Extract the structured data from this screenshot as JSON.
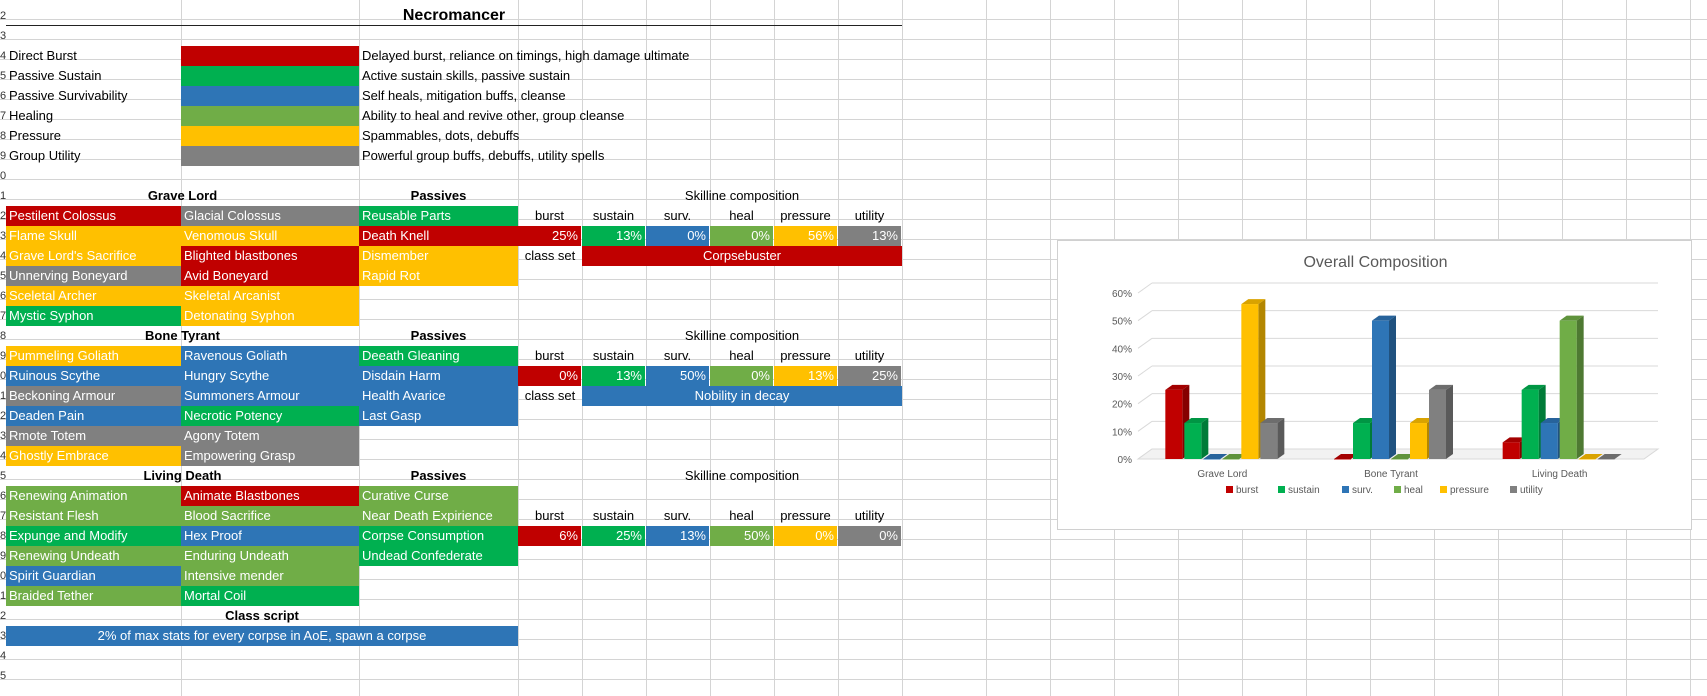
{
  "sheet_title": "Necromancer",
  "row_numbers": [
    "2",
    "3",
    "4",
    "5",
    "6",
    "7",
    "8",
    "9",
    "0",
    "1",
    "2",
    "3",
    "4",
    "5",
    "6",
    "7",
    "8",
    "9",
    "0",
    "1",
    "2",
    "3",
    "4",
    "5",
    "6",
    "7",
    "8",
    "9",
    "0",
    "1",
    "2",
    "3",
    "4",
    "5"
  ],
  "colors": {
    "red": "#c00000",
    "green": "#00b050",
    "blue": "#2e75b6",
    "lightgreen": "#70ad47",
    "orange": "#ffc000",
    "gray": "#808080"
  },
  "legend_rows": [
    {
      "name": "Direct Burst",
      "color": "red",
      "desc": "Delayed burst, reliance on timings, high damage ultimate"
    },
    {
      "name": "Passive Sustain",
      "color": "green",
      "desc": "Active sustain skills, passive sustain"
    },
    {
      "name": "Passive Survivability",
      "color": "blue",
      "desc": "Self heals, mitigation buffs, cleanse"
    },
    {
      "name": "Healing",
      "color": "lightgreen",
      "desc": "Ability to heal and revive other, group cleanse"
    },
    {
      "name": "Pressure",
      "color": "orange",
      "desc": "Spammables, dots, debuffs"
    },
    {
      "name": "Group Utility",
      "color": "gray",
      "desc": "Powerful group buffs, debuffs, utility spells"
    }
  ],
  "skill_lines": [
    {
      "name": "Grave Lord",
      "passives_label": "Passives",
      "composition_label": "Skilline composition",
      "skills": [
        [
          {
            "t": "Pestilent Colossus",
            "c": "red"
          },
          {
            "t": "Glacial Colossus",
            "c": "gray"
          },
          {
            "t": "Reusable Parts",
            "c": "green"
          }
        ],
        [
          {
            "t": "Flame Skull",
            "c": "orange"
          },
          {
            "t": "Venomous Skull",
            "c": "orange"
          },
          {
            "t": "Death Knell",
            "c": "red"
          }
        ],
        [
          {
            "t": "Grave Lord's Sacrifice",
            "c": "orange"
          },
          {
            "t": "Blighted blastbones",
            "c": "red"
          },
          {
            "t": "Dismember",
            "c": "orange"
          }
        ],
        [
          {
            "t": "Unnerving Boneyard",
            "c": "gray"
          },
          {
            "t": "Avid Boneyard",
            "c": "red"
          },
          {
            "t": "Rapid Rot",
            "c": "orange"
          }
        ],
        [
          {
            "t": "Sceletal Archer",
            "c": "orange"
          },
          {
            "t": "Skeletal Arcanist",
            "c": "orange"
          },
          null
        ],
        [
          {
            "t": "Mystic Syphon",
            "c": "green"
          },
          {
            "t": "Detonating Syphon",
            "c": "orange"
          },
          null
        ]
      ],
      "comp_row": 1,
      "percents": [
        "25%",
        "13%",
        "0%",
        "0%",
        "56%",
        "13%"
      ],
      "class_set_label": "class set",
      "class_set_row": 3,
      "class_set": "Corpsebuster",
      "class_set_color": "red"
    },
    {
      "name": "Bone Tyrant",
      "passives_label": "Passives",
      "composition_label": "Skilline composition",
      "skills": [
        [
          {
            "t": "Pummeling Goliath",
            "c": "orange"
          },
          {
            "t": "Ravenous Goliath",
            "c": "blue"
          },
          {
            "t": "Deeath Gleaning",
            "c": "green"
          }
        ],
        [
          {
            "t": "Ruinous Scythe",
            "c": "blue"
          },
          {
            "t": "Hungry Scythe",
            "c": "blue"
          },
          {
            "t": "Disdain Harm",
            "c": "blue"
          }
        ],
        [
          {
            "t": "Beckoning Armour",
            "c": "gray"
          },
          {
            "t": "Summoners Armour",
            "c": "blue"
          },
          {
            "t": "Health Avarice",
            "c": "blue"
          }
        ],
        [
          {
            "t": "Deaden Pain",
            "c": "blue"
          },
          {
            "t": "Necrotic Potency",
            "c": "green"
          },
          {
            "t": "Last Gasp",
            "c": "blue"
          }
        ],
        [
          {
            "t": "Rmote Totem",
            "c": "gray"
          },
          {
            "t": "Agony Totem",
            "c": "gray"
          },
          null
        ],
        [
          {
            "t": "Ghostly Embrace",
            "c": "orange"
          },
          {
            "t": "Empowering Grasp",
            "c": "gray"
          },
          null
        ]
      ],
      "comp_row": 1,
      "percents": [
        "0%",
        "13%",
        "50%",
        "0%",
        "13%",
        "25%"
      ],
      "class_set_label": "class set",
      "class_set_row": 3,
      "class_set": "Nobility in decay",
      "class_set_color": "blue"
    },
    {
      "name": "Living Death",
      "passives_label": "Passives",
      "composition_label": "Skilline composition",
      "skills": [
        [
          {
            "t": "Renewing Animation",
            "c": "lightgreen"
          },
          {
            "t": "Animate Blastbones",
            "c": "red"
          },
          {
            "t": "Curative Curse",
            "c": "lightgreen"
          }
        ],
        [
          {
            "t": "Resistant Flesh",
            "c": "lightgreen"
          },
          {
            "t": "Blood Sacrifice",
            "c": "lightgreen"
          },
          {
            "t": "Near Death Expirience",
            "c": "lightgreen"
          }
        ],
        [
          {
            "t": "Expunge and Modify",
            "c": "green"
          },
          {
            "t": "Hex Proof",
            "c": "blue"
          },
          {
            "t": "Corpse Consumption",
            "c": "green"
          }
        ],
        [
          {
            "t": "Renewing Undeath",
            "c": "lightgreen"
          },
          {
            "t": "Enduring Undeath",
            "c": "lightgreen"
          },
          {
            "t": "Undead Confederate",
            "c": "green"
          }
        ],
        [
          {
            "t": "Spirit Guardian",
            "c": "blue"
          },
          {
            "t": "Intensive mender",
            "c": "lightgreen"
          },
          null
        ],
        [
          {
            "t": "Braided Tether",
            "c": "lightgreen"
          },
          {
            "t": "Mortal Coil",
            "c": "green"
          },
          null
        ]
      ],
      "comp_row": 2,
      "percents": [
        "6%",
        "25%",
        "13%",
        "50%",
        "0%",
        "0%"
      ],
      "class_set_label": "",
      "class_set_row": null,
      "class_set": "",
      "class_set_color": ""
    }
  ],
  "comp_headers": [
    "burst",
    "sustain",
    "surv.",
    "heal",
    "pressure",
    "utility"
  ],
  "comp_colors": [
    "red",
    "green",
    "blue",
    "lightgreen",
    "orange",
    "gray"
  ],
  "class_script_label": "Class script",
  "class_script": "2% of max stats for every corpse in AoE, spawn a corpse",
  "class_script_color": "blue",
  "chart_data": {
    "type": "bar",
    "title": "Overall Composition",
    "categories": [
      "Grave Lord",
      "Bone Tyrant",
      "Living Death"
    ],
    "series": [
      {
        "name": "burst",
        "color": "#c00000",
        "values": [
          25,
          0,
          6
        ]
      },
      {
        "name": "sustain",
        "color": "#00b050",
        "values": [
          13,
          13,
          25
        ]
      },
      {
        "name": "surv.",
        "color": "#2e75b6",
        "values": [
          0,
          50,
          13
        ]
      },
      {
        "name": "heal",
        "color": "#70ad47",
        "values": [
          0,
          0,
          50
        ]
      },
      {
        "name": "pressure",
        "color": "#ffc000",
        "values": [
          56,
          13,
          0
        ]
      },
      {
        "name": "utility",
        "color": "#808080",
        "values": [
          13,
          25,
          0
        ]
      }
    ],
    "yticks": [
      "0%",
      "10%",
      "20%",
      "30%",
      "40%",
      "50%",
      "60%"
    ],
    "ylim": [
      0,
      60
    ],
    "grid": true,
    "legend": "bottom",
    "three_d": true
  }
}
